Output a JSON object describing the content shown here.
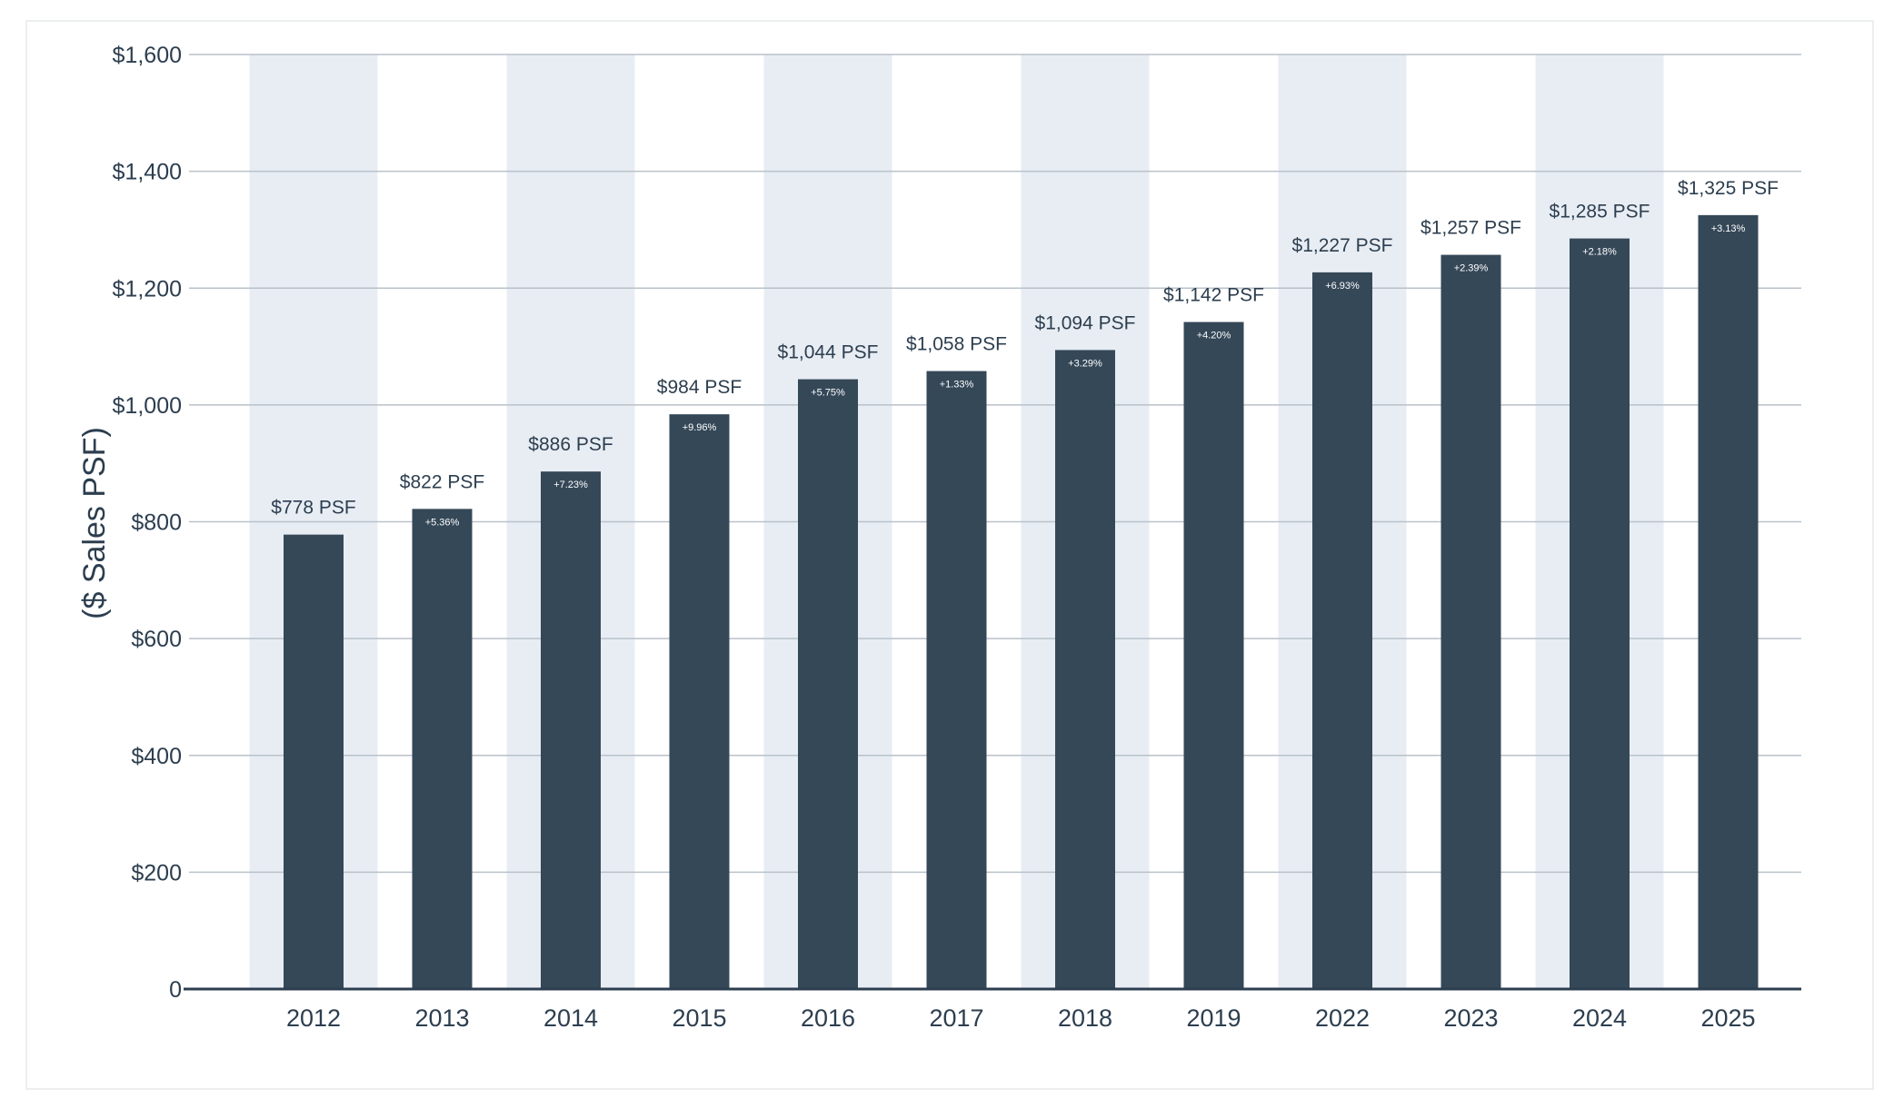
{
  "colors": {
    "bar": "#354858",
    "band": "#e8edf4",
    "grid": "#b9c1c9",
    "axis_line": "#2c3e4f",
    "text": "#2c3e4f",
    "inner_label": "#ffffff"
  },
  "chart_data": {
    "type": "bar",
    "title": "",
    "xlabel": "",
    "ylabel": "($ Sales PSF)",
    "ylim": [
      0,
      1600
    ],
    "y_ticks": [
      0,
      200,
      400,
      600,
      800,
      1000,
      1200,
      1400,
      1600
    ],
    "y_tick_labels": [
      "0",
      "$200",
      "$400",
      "$600",
      "$800",
      "$1,000",
      "$1,200",
      "$1,400",
      "$1,600"
    ],
    "grid": true,
    "alternating_background_bands": true,
    "categories": [
      "2012",
      "2013",
      "2014",
      "2015",
      "2016",
      "2017",
      "2018",
      "2019",
      "2022",
      "2023",
      "2024",
      "2025"
    ],
    "values": [
      778,
      822,
      886,
      984,
      1044,
      1058,
      1094,
      1142,
      1227,
      1257,
      1285,
      1325
    ],
    "value_labels": [
      "$778 PSF",
      "$822 PSF",
      "$886 PSF",
      "$984 PSF",
      "$1,044 PSF",
      "$1,058 PSF",
      "$1,094 PSF",
      "$1,142 PSF",
      "$1,227 PSF",
      "$1,257 PSF",
      "$1,285 PSF",
      "$1,325 PSF"
    ],
    "change_labels": [
      "",
      "+5.36%",
      "+7.23%",
      "+9.96%",
      "+5.75%",
      "+1.33%",
      "+3.29%",
      "+4.20%",
      "+6.93%",
      "+2.39%",
      "+2.18%",
      "+3.13%"
    ]
  }
}
